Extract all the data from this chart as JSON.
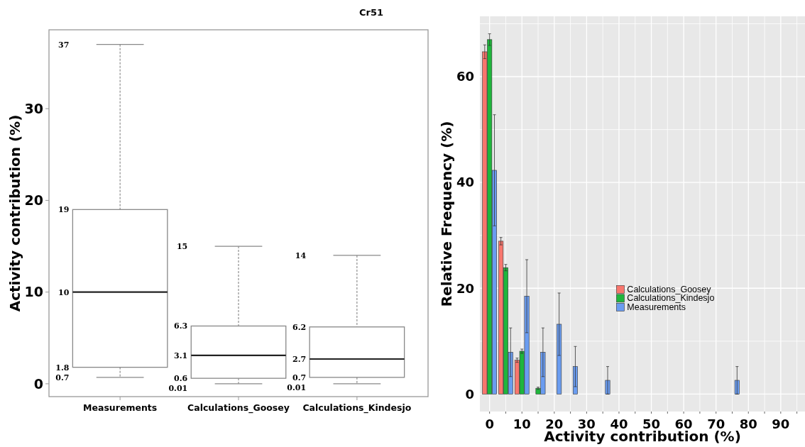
{
  "chart_data": [
    {
      "type": "box",
      "title": "Cr51",
      "ylabel": "Activity contribution (%)",
      "categories": [
        "Measurements",
        "Calculations_Goosey",
        "Calculations_Kindesjo"
      ],
      "boxes": [
        {
          "low": 0.7,
          "q1": 1.8,
          "median": 10,
          "q3": 19,
          "high": 37
        },
        {
          "low": 0.01,
          "q1": 0.6,
          "median": 3.1,
          "q3": 6.3,
          "high": 15
        },
        {
          "low": 0.01,
          "q1": 0.7,
          "median": 2.7,
          "q3": 6.2,
          "high": 14
        }
      ],
      "annotations": [
        "37",
        "19",
        "10",
        "1.8",
        "0.7",
        "15",
        "6.3",
        "3.1",
        "0.6",
        "0.01",
        "14",
        "6.2",
        "2.7",
        "0.7",
        "0.01"
      ],
      "ylim": [
        -1.4,
        38.6
      ],
      "yticks": [
        0,
        10,
        20,
        30
      ],
      "grid": false
    },
    {
      "type": "bar",
      "xlabel": "Activity contribution (%)",
      "ylabel": "Relative Frequency (%)",
      "x": [
        0,
        5,
        10,
        15,
        20,
        25,
        30,
        35,
        40,
        45,
        50,
        55,
        60,
        65,
        70,
        75,
        80,
        85,
        90,
        95
      ],
      "series": [
        {
          "name": "Calculations_Goosey",
          "color": "#f8766d",
          "values": [
            64.7,
            28.9,
            6.4,
            0,
            0,
            0,
            0,
            0,
            0,
            0,
            0,
            0,
            0,
            0,
            0,
            0,
            0,
            0,
            0,
            0
          ],
          "errors": [
            1.3,
            0.7,
            0.4,
            null,
            null,
            null,
            null,
            null,
            null,
            null,
            null,
            null,
            null,
            null,
            null,
            null,
            null,
            null,
            null,
            null
          ]
        },
        {
          "name": "Calculations_Kindesjo",
          "color": "#1fb53c",
          "values": [
            67.0,
            23.9,
            8.1,
            1.1,
            0,
            0,
            0,
            0,
            0,
            0,
            0,
            0,
            0,
            0,
            0,
            0,
            0,
            0,
            0,
            0
          ],
          "errors": [
            1.1,
            0.6,
            0.4,
            0.2,
            null,
            null,
            null,
            null,
            null,
            null,
            null,
            null,
            null,
            null,
            null,
            null,
            null,
            null,
            null,
            null
          ]
        },
        {
          "name": "Measurements",
          "color": "#6a9cf0",
          "values": [
            42.3,
            7.9,
            18.5,
            7.9,
            13.2,
            5.2,
            0,
            2.6,
            0,
            0,
            0,
            0,
            0,
            0,
            0,
            2.6,
            0,
            0,
            0,
            0
          ],
          "errors": [
            10.5,
            4.6,
            6.9,
            4.6,
            5.9,
            3.8,
            null,
            2.6,
            null,
            null,
            null,
            null,
            null,
            null,
            null,
            2.6,
            null,
            null,
            null,
            null
          ]
        }
      ],
      "xlim": [
        -3,
        97.5
      ],
      "xticks": [
        0,
        {
          "value": 5,
          "label": null
        },
        10,
        {
          "value": 15,
          "label": null
        },
        20,
        {
          "value": 25,
          "label": null
        },
        30,
        {
          "value": 35,
          "label": null
        },
        40,
        {
          "value": 45,
          "label": null
        },
        50,
        {
          "value": 55,
          "label": null
        },
        60,
        {
          "value": 65,
          "label": null
        },
        70,
        {
          "value": 75,
          "label": null
        },
        80,
        {
          "value": 85,
          "label": null
        },
        90,
        {
          "value": 95,
          "label": null
        }
      ],
      "ylim": [
        -3.3,
        71.4
      ],
      "yticks": [
        0,
        {
          "value": 10,
          "label": null
        },
        20,
        {
          "value": 30,
          "label": null
        },
        40,
        {
          "value": 50,
          "label": null
        },
        60,
        {
          "value": 70,
          "label": null
        }
      ],
      "grid": true,
      "legend": "center"
    }
  ]
}
